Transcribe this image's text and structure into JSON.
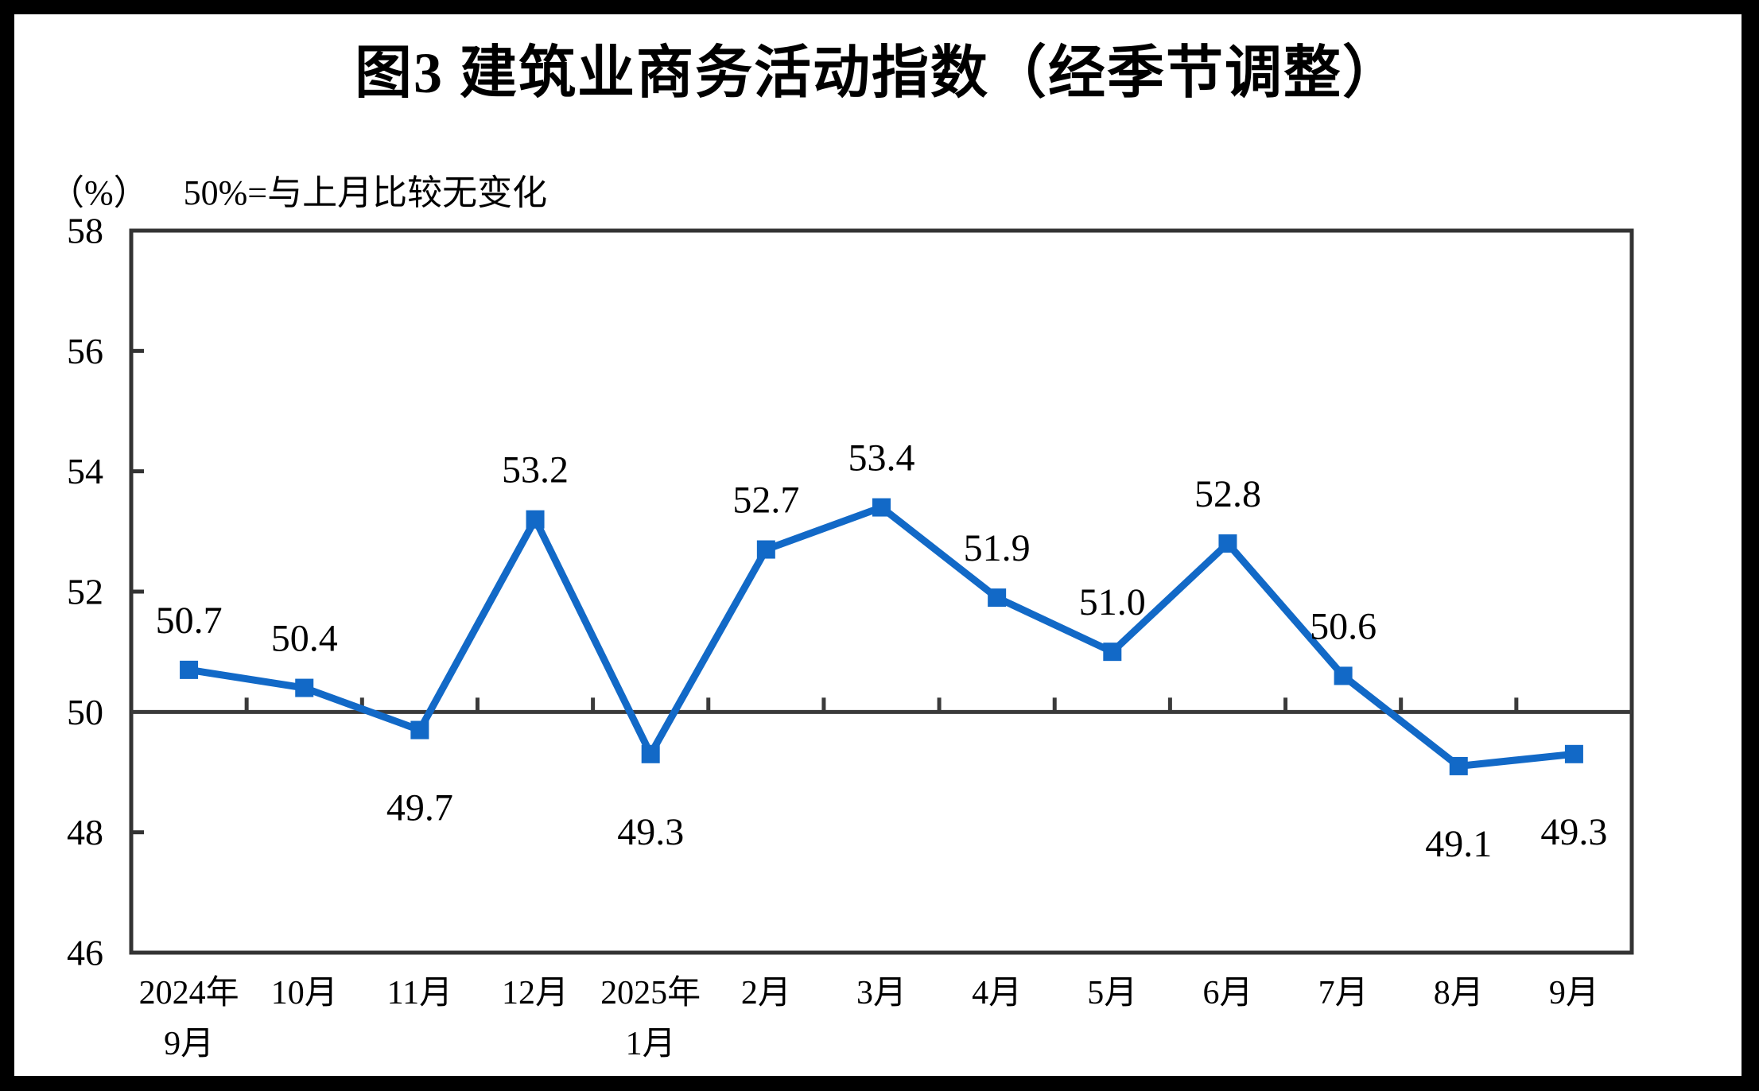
{
  "title": "图3  建筑业商务活动指数（经季节调整）",
  "subtitle": {
    "y_axis_unit": "（%）",
    "note": "50%=与上月比较无变化"
  },
  "chart_data": {
    "type": "line",
    "title": "图3  建筑业商务活动指数（经季节调整）",
    "categories": [
      [
        "2024年",
        "9月"
      ],
      [
        "10月"
      ],
      [
        "11月"
      ],
      [
        "12月"
      ],
      [
        "2025年",
        "1月"
      ],
      [
        "2月"
      ],
      [
        "3月"
      ],
      [
        "4月"
      ],
      [
        "5月"
      ],
      [
        "6月"
      ],
      [
        "7月"
      ],
      [
        "8月"
      ],
      [
        "9月"
      ]
    ],
    "series": [
      {
        "name": "建筑业商务活动指数",
        "values": [
          50.7,
          50.4,
          49.7,
          53.2,
          49.3,
          52.7,
          53.4,
          51.9,
          51.0,
          52.8,
          50.6,
          49.1,
          49.3
        ],
        "data_labels": [
          "50.7",
          "50.4",
          "49.7",
          "53.2",
          "49.3",
          "52.7",
          "53.4",
          "51.9",
          "51.0",
          "52.8",
          "50.6",
          "49.1",
          "49.3"
        ],
        "label_positions": [
          "above",
          "above",
          "below",
          "above",
          "below",
          "above",
          "above",
          "above",
          "above",
          "above",
          "above",
          "below",
          "below"
        ]
      }
    ],
    "xlabel": "",
    "ylabel": "（%）",
    "ylim": [
      46,
      58
    ],
    "y_ticks": [
      58,
      56,
      54,
      52,
      50,
      48,
      46
    ],
    "reference_line": 50,
    "grid": false,
    "legend_position": "none",
    "colors": {
      "line": "#1269C7",
      "marker": "#1269C7",
      "axis": "#333333",
      "reference_line": "#3a3a3a",
      "text": "#000000"
    },
    "marker_style": "square"
  }
}
